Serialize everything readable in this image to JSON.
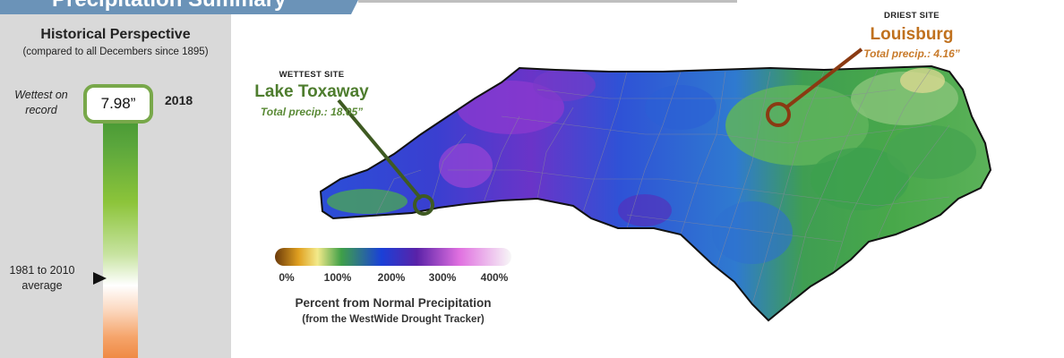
{
  "header": {
    "title": "Precipitation Summary"
  },
  "left_panel": {
    "title": "Historical Perspective",
    "subtitle": "(compared to all Decembers since 1895)",
    "top_label": "Wettest on record",
    "value": "7.98”",
    "year": "2018",
    "avg_label": "1981 to 2010 average"
  },
  "wettest_site": {
    "tag": "WETTEST SITE",
    "name": "Lake Toxaway",
    "total": "Total precip.: 18.05”",
    "color": "#4a7a2c",
    "name_color": "#4e7d2e",
    "total_color": "#5a8a36"
  },
  "driest_site": {
    "tag": "DRIEST SITE",
    "name": "Louisburg",
    "total": "Total precip.: 4.16”",
    "color": "#8a3a12",
    "name_color": "#c0711e",
    "total_color": "#c87a2a"
  },
  "legend": {
    "title": "Percent from Normal Precipitation",
    "subtitle": "(from the WestWide Drought Tracker)",
    "ticks": [
      "0%",
      "100%",
      "200%",
      "300%",
      "400%"
    ],
    "colors": [
      "#6b3a0a",
      "#e0a020",
      "#f3ea8a",
      "#3fa048",
      "#1a40d8",
      "#5a22a8",
      "#e070e0",
      "#f7f7f7"
    ]
  }
}
